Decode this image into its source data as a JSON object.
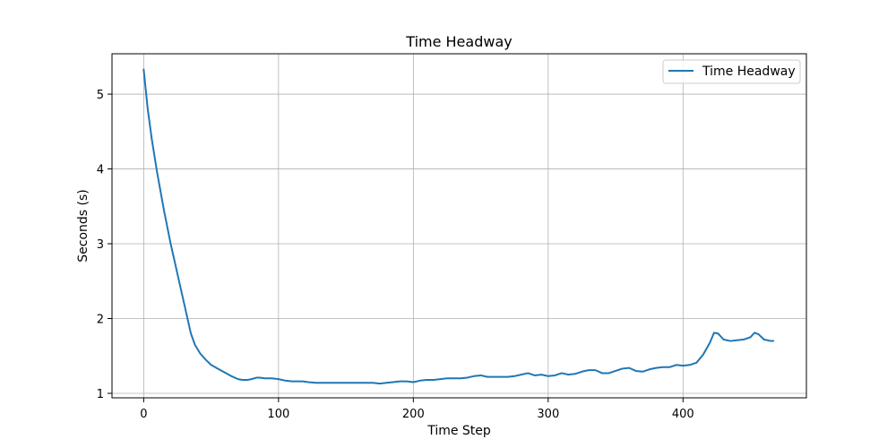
{
  "chart_data": {
    "type": "line",
    "title": "Time Headway",
    "xlabel": "Time Step",
    "ylabel": "Seconds (s)",
    "xlim": [
      -23.5,
      491.5
    ],
    "ylim": [
      0.94,
      5.54
    ],
    "xticks": [
      0,
      100,
      200,
      300,
      400
    ],
    "yticks": [
      1,
      2,
      3,
      4,
      5
    ],
    "grid": true,
    "legend_position": "top-right",
    "colors": {
      "series": "#1f77b4",
      "grid": "#b0b0b0",
      "axis": "#000000"
    },
    "series": [
      {
        "name": "Time Headway",
        "x": [
          0,
          3,
          6,
          10,
          15,
          20,
          25,
          30,
          35,
          38,
          42,
          46,
          50,
          55,
          60,
          65,
          70,
          73,
          77,
          80,
          84,
          86,
          90,
          95,
          100,
          105,
          110,
          115,
          118,
          122,
          128,
          135,
          145,
          155,
          160,
          165,
          170,
          175,
          180,
          185,
          190,
          195,
          200,
          205,
          210,
          215,
          220,
          225,
          230,
          235,
          240,
          245,
          250,
          255,
          260,
          265,
          270,
          275,
          280,
          285,
          290,
          295,
          300,
          305,
          310,
          315,
          320,
          325,
          330,
          335,
          340,
          345,
          350,
          355,
          360,
          365,
          370,
          375,
          380,
          385,
          390,
          395,
          400,
          405,
          410,
          415,
          420,
          423,
          426,
          430,
          435,
          440,
          445,
          450,
          453,
          456,
          460,
          465,
          467
        ],
        "values": [
          5.33,
          4.8,
          4.4,
          3.95,
          3.45,
          3.0,
          2.6,
          2.2,
          1.8,
          1.65,
          1.53,
          1.45,
          1.38,
          1.33,
          1.28,
          1.23,
          1.19,
          1.18,
          1.18,
          1.19,
          1.21,
          1.21,
          1.2,
          1.2,
          1.19,
          1.17,
          1.16,
          1.16,
          1.16,
          1.15,
          1.14,
          1.14,
          1.14,
          1.14,
          1.14,
          1.14,
          1.14,
          1.13,
          1.14,
          1.15,
          1.16,
          1.16,
          1.15,
          1.17,
          1.18,
          1.18,
          1.19,
          1.2,
          1.2,
          1.2,
          1.21,
          1.23,
          1.24,
          1.22,
          1.22,
          1.22,
          1.22,
          1.23,
          1.25,
          1.27,
          1.24,
          1.25,
          1.23,
          1.24,
          1.27,
          1.25,
          1.26,
          1.29,
          1.31,
          1.31,
          1.27,
          1.27,
          1.3,
          1.33,
          1.34,
          1.3,
          1.29,
          1.32,
          1.34,
          1.35,
          1.35,
          1.38,
          1.37,
          1.38,
          1.41,
          1.52,
          1.68,
          1.81,
          1.8,
          1.72,
          1.7,
          1.71,
          1.72,
          1.75,
          1.81,
          1.79,
          1.72,
          1.7,
          1.7
        ]
      }
    ]
  }
}
